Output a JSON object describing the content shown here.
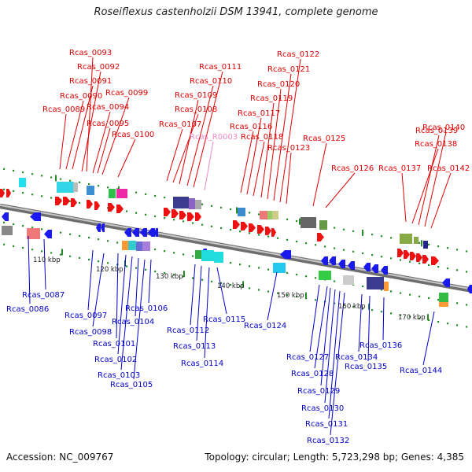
{
  "title": "Roseiflexus castenholzii DSM 13941, complete genome",
  "footer": {
    "accession": "Accession: NC_009767",
    "info": "Topology: circular; Length: 5,723,298 bp; Genes: 4,385"
  },
  "colors": {
    "forward_label": "#e00000",
    "reverse_label": "#0000cc",
    "rna_label": "#ee88cc",
    "backbone": "#9a9a9a",
    "tick": "#2a8a2a"
  },
  "scale": [
    {
      "label": "110 kbp"
    },
    {
      "label": "120 kbp"
    },
    {
      "label": "130 kbp"
    },
    {
      "label": "140 kbp"
    },
    {
      "label": "150 kbp"
    },
    {
      "label": "160 kbp"
    },
    {
      "label": "170 kbp"
    }
  ],
  "forward_labels": [
    "Rcas_0089",
    "Rcas_0090",
    "Rcas_0091",
    "Rcas_0092",
    "Rcas_0093",
    "Rcas_0094",
    "Rcas_0095",
    "Rcas_0099",
    "Rcas_0100",
    "Rcas_0107",
    "Rcas_0108",
    "Rcas_0109",
    "Rcas_0110",
    "Rcas_0111",
    "Rcas_R0003",
    "Rcas_0116",
    "Rcas_0117",
    "Rcas_0118",
    "Rcas_0119",
    "Rcas_0120",
    "Rcas_0121",
    "Rcas_0122",
    "Rcas_0123",
    "Rcas_0125",
    "Rcas_0126",
    "Rcas_0137",
    "Rcas_0138",
    "Rcas_0139",
    "Rcas_0140",
    "Rcas_0142"
  ],
  "reverse_labels": [
    "Rcas_0086",
    "Rcas_0087",
    "Rcas_0097",
    "Rcas_0098",
    "Rcas_0101",
    "Rcas_0102",
    "Rcas_0103",
    "Rcas_0104",
    "Rcas_0105",
    "Rcas_0106",
    "Rcas_0112",
    "Rcas_0113",
    "Rcas_0114",
    "Rcas_0115",
    "Rcas_0124",
    "Rcas_0127",
    "Rcas_0128",
    "Rcas_0129",
    "Rcas_0130",
    "Rcas_0131",
    "Rcas_0132",
    "Rcas_0134",
    "Rcas_0135",
    "Rcas_0136",
    "Rcas_0144"
  ]
}
